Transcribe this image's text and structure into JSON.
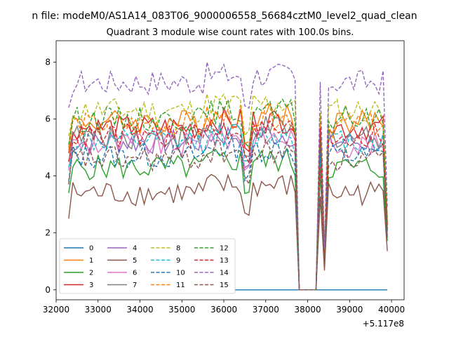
{
  "chart_data": {
    "type": "line",
    "suptitle": "n file: modeM0/AS1A14_083T06_9000006558_56684cztM0_level2_quad_clean",
    "title": "Quadrant 3 module wise count rates with 100.0s bins.",
    "xlabel": "",
    "ylabel": "",
    "x_offset_label": "+5.117e8",
    "xlim": [
      32000,
      40300
    ],
    "ylim": [
      -0.35,
      8.75
    ],
    "xticks": [
      32000,
      33000,
      34000,
      35000,
      36000,
      37000,
      38000,
      39000,
      40000
    ],
    "yticks": [
      0,
      2,
      4,
      6,
      8
    ],
    "x_start": 32300,
    "x_end": 39900,
    "x_step": 100,
    "gap_start": 37700,
    "gap_end": 38300,
    "legend_position": "lower-left",
    "series": [
      {
        "name": "0",
        "style": "solid",
        "color": "#1f77b4",
        "base": 0.0
      },
      {
        "name": "1",
        "style": "solid",
        "color": "#ff7f0e",
        "base": 5.9
      },
      {
        "name": "2",
        "style": "solid",
        "color": "#2ca02c",
        "base": 4.3
      },
      {
        "name": "3",
        "style": "solid",
        "color": "#d62728",
        "base": 5.7
      },
      {
        "name": "4",
        "style": "solid",
        "color": "#9467bd",
        "base": 5.2
      },
      {
        "name": "5",
        "style": "solid",
        "color": "#8c564b",
        "base": 3.4
      },
      {
        "name": "6",
        "style": "solid",
        "color": "#e377c2",
        "base": 5.1
      },
      {
        "name": "7",
        "style": "solid",
        "color": "#7f7f7f",
        "base": 5.4
      },
      {
        "name": "8",
        "style": "dashed",
        "color": "#bcbd22",
        "base": 6.3
      },
      {
        "name": "9",
        "style": "dashed",
        "color": "#17becf",
        "base": 5.2
      },
      {
        "name": "10",
        "style": "dashed",
        "color": "#1f77b4",
        "base": 4.7
      },
      {
        "name": "11",
        "style": "dashed",
        "color": "#ff7f0e",
        "base": 5.8
      },
      {
        "name": "12",
        "style": "dashed",
        "color": "#2ca02c",
        "base": 6.0
      },
      {
        "name": "13",
        "style": "dashed",
        "color": "#d62728",
        "base": 5.4
      },
      {
        "name": "14",
        "style": "dashed",
        "color": "#9467bd",
        "base": 7.3
      },
      {
        "name": "15",
        "style": "dashed",
        "color": "#8c564b",
        "base": 4.6
      }
    ]
  }
}
